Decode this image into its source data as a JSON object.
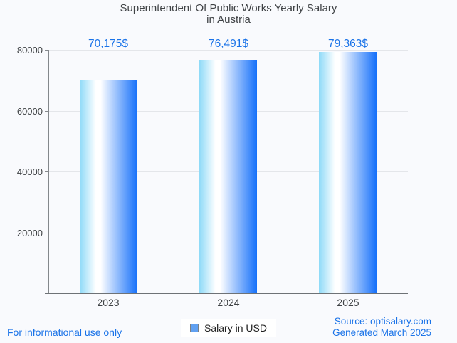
{
  "title": {
    "line1": "Superintendent Of Public Works Yearly Salary",
    "line2": "in Austria"
  },
  "chart_data": {
    "type": "bar",
    "title": "Superintendent Of Public Works Yearly Salary in Austria",
    "categories": [
      "2023",
      "2024",
      "2025"
    ],
    "series": [
      {
        "name": "Salary in USD",
        "values": [
          70175,
          76491,
          79363
        ]
      }
    ],
    "value_labels": [
      "70,175$",
      "76,491$",
      "79,363$"
    ],
    "xlabel": "",
    "ylabel": "",
    "ylim": [
      0,
      80000
    ],
    "yticks": [
      20000,
      40000,
      60000,
      80000
    ],
    "ytick_labels": [
      "20000",
      "40000",
      "60000",
      "80000"
    ],
    "grid": true,
    "legend_position": "bottom",
    "bar_gradient": [
      "#8edaf8",
      "#ffffff",
      "#1570fa"
    ]
  },
  "legend": {
    "label": "Salary in USD",
    "swatch_fill": "#61a1f1",
    "swatch_border": "#7e7e7e"
  },
  "footer": {
    "left_note": "For informational use only",
    "source": "Source: optisalary.com",
    "generated": "Generated March 2025"
  },
  "colors": {
    "background": "#f9fafd",
    "gridline": "#e4e6ea",
    "axis_line": "#84888c",
    "baseline": "#6e7276",
    "axis_text": "#3f4245",
    "title_text": "#3f4245",
    "value_label": "#1a73e8",
    "footer_text": "#1a73e8",
    "legend_text": "#1f1f1f"
  }
}
